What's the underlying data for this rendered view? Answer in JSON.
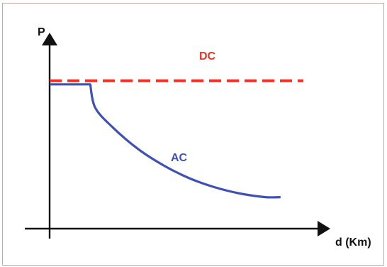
{
  "chart_data": {
    "type": "line",
    "title": "",
    "ylabel": "P",
    "xlabel": "d (Km)",
    "grid": false,
    "legend": "none",
    "xlim": [
      0,
      10
    ],
    "ylim": [
      0,
      10
    ],
    "series": [
      {
        "name": "DC",
        "color": "#ee3124",
        "style": "dashed",
        "x": [
          0,
          10
        ],
        "y": [
          8.2,
          8.2
        ]
      },
      {
        "name": "AC",
        "color": "#3f51b5",
        "style": "solid",
        "x": [
          0,
          1.6,
          1.8,
          2.5,
          3.5,
          4.5,
          5.5,
          6.5,
          7.5,
          8.5,
          9.1
        ],
        "y": [
          8.0,
          8.0,
          6.7,
          5.6,
          4.4,
          3.5,
          2.8,
          2.3,
          1.95,
          1.75,
          1.75
        ]
      }
    ]
  }
}
